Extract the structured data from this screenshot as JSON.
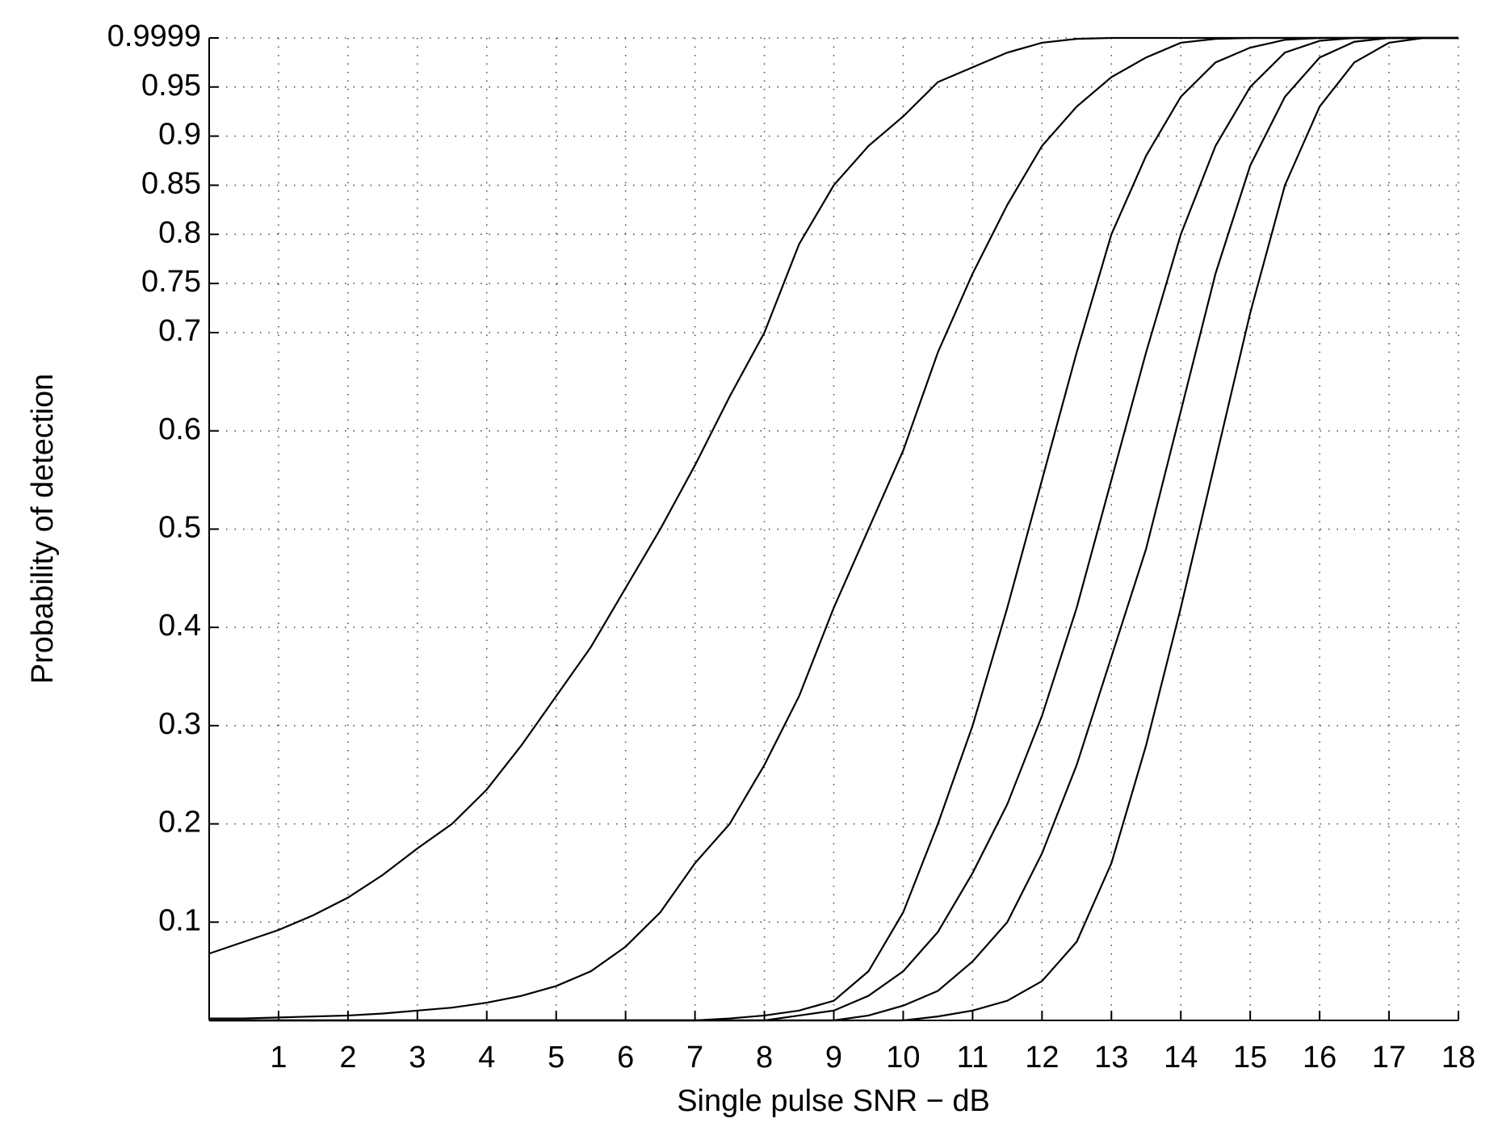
{
  "chart_data": {
    "type": "line",
    "x_label": "Single pulse SNR − dB",
    "y_label": "Probability of detection",
    "x": [
      0,
      0.5,
      1,
      1.5,
      2,
      2.5,
      3,
      3.5,
      4,
      4.5,
      5,
      5.5,
      6,
      6.5,
      7,
      7.5,
      8,
      8.5,
      9,
      9.5,
      10,
      10.5,
      11,
      11.5,
      12,
      12.5,
      13,
      13.5,
      14,
      14.5,
      15,
      15.5,
      16,
      16.5,
      17,
      17.5,
      18
    ],
    "series": [
      {
        "color": "#000000",
        "values": [
          0.068,
          0.08,
          0.092,
          0.107,
          0.125,
          0.148,
          0.175,
          0.2,
          0.235,
          0.28,
          0.33,
          0.38,
          0.44,
          0.5,
          0.565,
          0.635,
          0.7,
          0.79,
          0.85,
          0.89,
          0.92,
          0.955,
          0.97,
          0.985,
          0.995,
          0.999,
          0.9999,
          0.9999,
          0.9999,
          0.9999,
          0.9999,
          0.9999,
          0.9999,
          0.9999,
          0.9999,
          0.9999,
          0.9999
        ]
      },
      {
        "color": "#000000",
        "values": [
          0.002,
          0.002,
          0.003,
          0.004,
          0.005,
          0.007,
          0.01,
          0.013,
          0.018,
          0.025,
          0.035,
          0.05,
          0.075,
          0.11,
          0.16,
          0.2,
          0.26,
          0.33,
          0.42,
          0.5,
          0.58,
          0.68,
          0.76,
          0.83,
          0.89,
          0.93,
          0.96,
          0.98,
          0.995,
          0.999,
          0.9999,
          0.9999,
          0.9999,
          0.9999,
          0.9999,
          0.9999,
          0.9999
        ]
      },
      {
        "color": "#000000",
        "values": [
          0,
          0,
          0,
          0,
          0,
          0,
          0,
          0,
          0,
          0,
          0,
          0,
          0,
          0,
          0,
          0.002,
          0.005,
          0.01,
          0.02,
          0.05,
          0.11,
          0.2,
          0.3,
          0.42,
          0.55,
          0.68,
          0.8,
          0.88,
          0.94,
          0.975,
          0.99,
          0.998,
          0.9999,
          0.9999,
          0.9999,
          0.9999,
          0.9999
        ]
      },
      {
        "color": "#000000",
        "values": [
          0,
          0,
          0,
          0,
          0,
          0,
          0,
          0,
          0,
          0,
          0,
          0,
          0,
          0,
          0,
          0,
          0,
          0.005,
          0.01,
          0.025,
          0.05,
          0.09,
          0.15,
          0.22,
          0.31,
          0.42,
          0.55,
          0.68,
          0.8,
          0.89,
          0.95,
          0.985,
          0.997,
          0.9999,
          0.9999,
          0.9999,
          0.9999
        ]
      },
      {
        "color": "#000000",
        "values": [
          0,
          0,
          0,
          0,
          0,
          0,
          0,
          0,
          0,
          0,
          0,
          0,
          0,
          0,
          0,
          0,
          0,
          0,
          0,
          0.005,
          0.015,
          0.03,
          0.06,
          0.1,
          0.17,
          0.26,
          0.37,
          0.48,
          0.62,
          0.76,
          0.87,
          0.94,
          0.98,
          0.996,
          0.9999,
          0.9999,
          0.9999
        ]
      },
      {
        "color": "#000000",
        "values": [
          0,
          0,
          0,
          0,
          0,
          0,
          0,
          0,
          0,
          0,
          0,
          0,
          0,
          0,
          0,
          0,
          0,
          0,
          0,
          0,
          0,
          0.004,
          0.01,
          0.02,
          0.04,
          0.08,
          0.16,
          0.28,
          0.42,
          0.57,
          0.72,
          0.85,
          0.93,
          0.975,
          0.995,
          0.9999,
          0.9999
        ]
      }
    ],
    "xlim": [
      0,
      18
    ],
    "xticks": [
      1,
      2,
      3,
      4,
      5,
      6,
      7,
      8,
      9,
      10,
      11,
      12,
      13,
      14,
      15,
      16,
      17,
      18
    ],
    "ylim": [
      0,
      0.9999
    ],
    "yticks": [
      0.1,
      0.2,
      0.3,
      0.4,
      0.5,
      0.6,
      0.7,
      0.75,
      0.8,
      0.85,
      0.9,
      0.95,
      0.9999
    ],
    "grid": true
  }
}
